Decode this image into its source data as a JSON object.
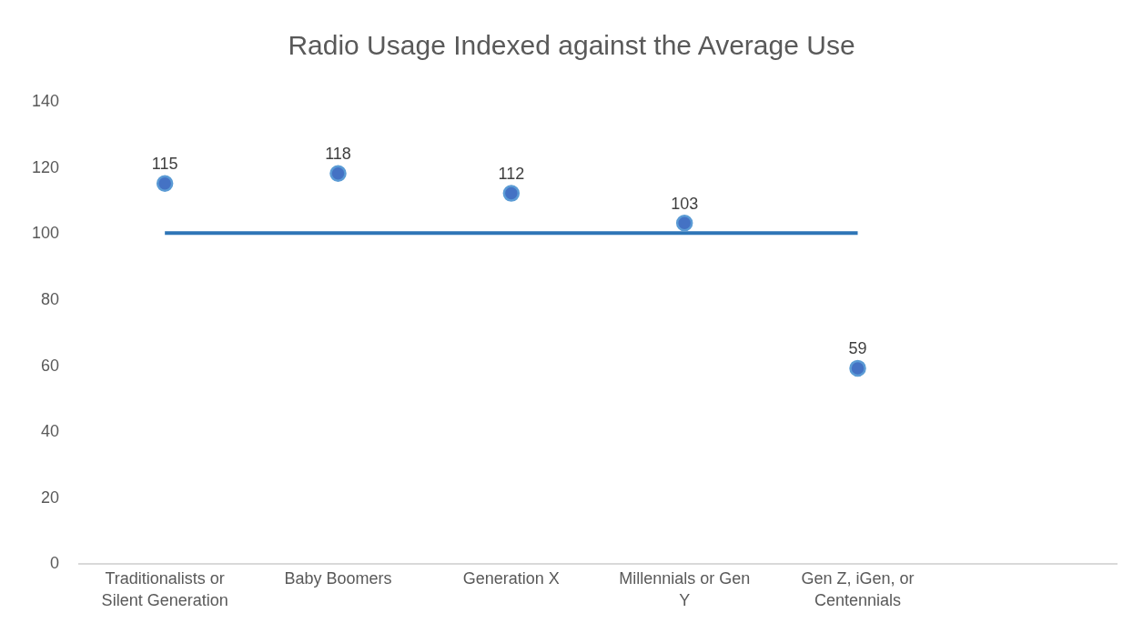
{
  "chart_data": {
    "type": "scatter",
    "title": "Radio Usage Indexed against the Average Use",
    "categories": [
      "Traditionalists or Silent Generation",
      "Baby Boomers",
      "Generation X",
      "Millennials or Gen Y",
      "Gen Z, iGen, or Centennials",
      null
    ],
    "series": [
      {
        "type": "line",
        "color": "#2e75b6",
        "marker": "none",
        "line_style": "solid",
        "values": [
          100,
          100,
          100,
          100,
          100,
          null
        ]
      },
      {
        "color": "#4472c4",
        "marker": "circle",
        "data_labels": true,
        "values": [
          115,
          118,
          112,
          103,
          59,
          null
        ]
      }
    ],
    "ylim": [
      0,
      140
    ],
    "yticks": [
      0,
      20,
      40,
      60,
      80,
      100,
      120,
      140
    ],
    "grid": false
  }
}
